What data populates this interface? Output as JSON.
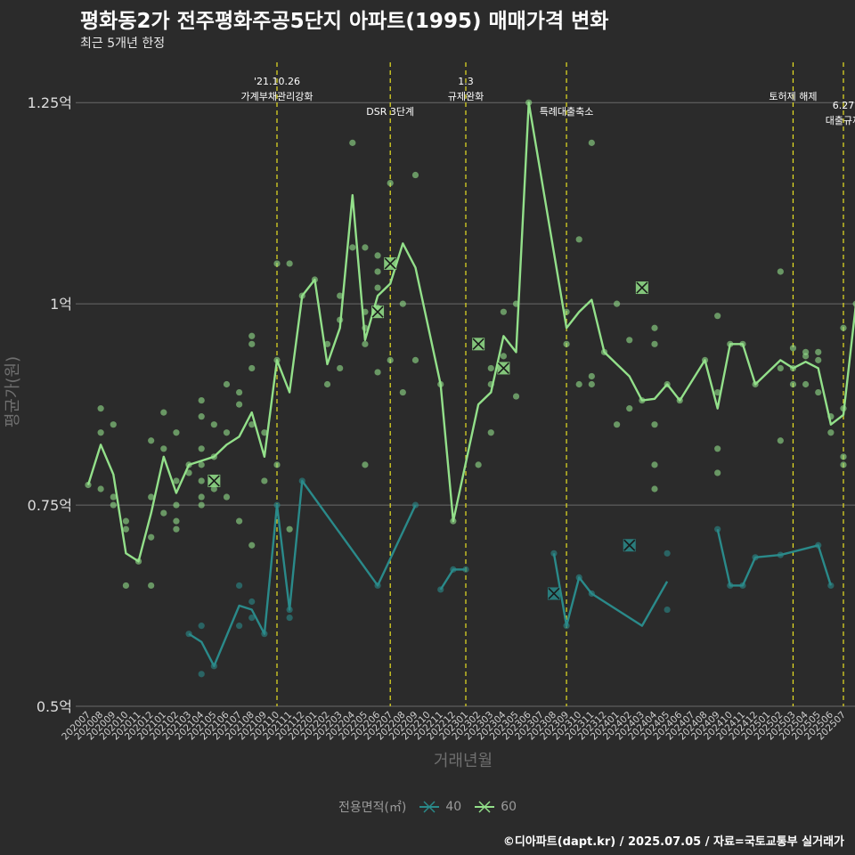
{
  "title": "평화동2가 전주평화주공5단지 아파트(1995) 매매가격 변화",
  "subtitle": "최근 5개년 한정",
  "credit": "©디아파트(dapt.kr) / 2025.07.05 / 자료=국토교통부 실거래가",
  "colors": {
    "background": "#2b2b2b",
    "s40": "#2a8a8a",
    "s60": "#93e08a",
    "event": "#e8e022",
    "grid": "#6a6a6a"
  },
  "chart_data": {
    "type": "line",
    "xlabel": "거래년월",
    "ylabel": "평균가(원)",
    "ylim": [
      0.5,
      1.3
    ],
    "yticks": [
      0.5,
      0.75,
      1.0,
      1.25
    ],
    "ytick_labels": [
      "0.5억",
      "0.75억",
      "1억",
      "1.25억"
    ],
    "categories": [
      "202007",
      "202008",
      "202009",
      "202010",
      "202011",
      "202012",
      "202101",
      "202102",
      "202103",
      "202104",
      "202105",
      "202106",
      "202107",
      "202108",
      "202109",
      "202110",
      "202111",
      "202112",
      "202201",
      "202202",
      "202203",
      "202204",
      "202205",
      "202206",
      "202207",
      "202208",
      "202209",
      "202210",
      "202211",
      "202212",
      "202301",
      "202302",
      "202303",
      "202304",
      "202305",
      "202306",
      "202307",
      "202308",
      "202309",
      "202310",
      "202311",
      "202312",
      "202401",
      "202402",
      "202403",
      "202404",
      "202405",
      "202406",
      "202407",
      "202408",
      "202409",
      "202410",
      "202411",
      "202412",
      "202501",
      "202502",
      "202503",
      "202504",
      "202505",
      "202506",
      "202507"
    ],
    "legend_title": "전용면적(㎡)",
    "series": [
      {
        "name": "40",
        "color": "#2a8a8a",
        "line": [
          [
            [
              8,
              0.59
            ],
            [
              9,
              0.58
            ],
            [
              10,
              0.55
            ],
            [
              12,
              0.625
            ],
            [
              13,
              0.62
            ],
            [
              14,
              0.59
            ],
            [
              15,
              0.75
            ],
            [
              16,
              0.62
            ],
            [
              17,
              0.78
            ],
            [
              23,
              0.65
            ],
            [
              26,
              0.75
            ]
          ],
          [
            [
              28,
              0.645
            ],
            [
              29,
              0.67
            ],
            [
              30,
              0.67
            ]
          ],
          [
            [
              37,
              0.69
            ],
            [
              38,
              0.6
            ],
            [
              39,
              0.66
            ],
            [
              40,
              0.64
            ],
            [
              44,
              0.6
            ],
            [
              46,
              0.655
            ]
          ],
          [
            [
              50,
              0.72
            ],
            [
              51,
              0.65
            ],
            [
              52,
              0.65
            ],
            [
              53,
              0.685
            ],
            [
              55,
              0.688
            ],
            [
              58,
              0.7
            ],
            [
              59,
              0.65
            ]
          ]
        ],
        "points": [
          [
            8,
            0.59
          ],
          [
            9,
            0.6
          ],
          [
            9,
            0.54
          ],
          [
            10,
            0.55
          ],
          [
            12,
            0.6
          ],
          [
            12,
            0.65
          ],
          [
            13,
            0.63
          ],
          [
            13,
            0.61
          ],
          [
            14,
            0.59
          ],
          [
            15,
            0.75
          ],
          [
            16,
            0.61
          ],
          [
            16,
            0.62
          ],
          [
            17,
            0.78
          ],
          [
            23,
            0.65
          ],
          [
            26,
            0.75
          ],
          [
            28,
            0.645
          ],
          [
            29,
            0.67
          ],
          [
            30,
            0.67
          ],
          [
            37,
            0.69
          ],
          [
            38,
            0.6
          ],
          [
            39,
            0.66
          ],
          [
            40,
            0.64
          ],
          [
            46,
            0.69
          ],
          [
            46,
            0.62
          ],
          [
            50,
            0.72
          ],
          [
            51,
            0.65
          ],
          [
            52,
            0.65
          ],
          [
            53,
            0.685
          ],
          [
            55,
            0.688
          ],
          [
            58,
            0.7
          ],
          [
            59,
            0.65
          ]
        ],
        "crosses": [
          [
            37,
            0.64
          ],
          [
            43,
            0.7
          ]
        ]
      },
      {
        "name": "60",
        "color": "#93e08a",
        "line": [
          [
            [
              0,
              0.775
            ],
            [
              1,
              0.825
            ],
            [
              2,
              0.788
            ],
            [
              3,
              0.69
            ],
            [
              4,
              0.68
            ],
            [
              5,
              0.74
            ],
            [
              6,
              0.81
            ],
            [
              7,
              0.765
            ],
            [
              8,
              0.8
            ],
            [
              9,
              0.805
            ],
            [
              10,
              0.81
            ],
            [
              11,
              0.825
            ],
            [
              12,
              0.835
            ],
            [
              13,
              0.865
            ],
            [
              14,
              0.81
            ],
            [
              15,
              0.93
            ],
            [
              16,
              0.89
            ],
            [
              17,
              1.01
            ],
            [
              18,
              1.03
            ],
            [
              19,
              0.925
            ],
            [
              20,
              0.97
            ],
            [
              21,
              1.135
            ],
            [
              22,
              0.955
            ],
            [
              23,
              1.01
            ],
            [
              24,
              1.025
            ],
            [
              25,
              1.075
            ],
            [
              26,
              1.045
            ],
            [
              28,
              0.9
            ],
            [
              29,
              0.73
            ],
            [
              31,
              0.875
            ],
            [
              32,
              0.89
            ],
            [
              33,
              0.96
            ],
            [
              34,
              0.94
            ],
            [
              35,
              1.25
            ],
            [
              38,
              0.97
            ],
            [
              39,
              0.99
            ],
            [
              40,
              1.005
            ],
            [
              41,
              0.94
            ],
            [
              43,
              0.91
            ],
            [
              44,
              0.88
            ],
            [
              45,
              0.882
            ],
            [
              46,
              0.9
            ],
            [
              47,
              0.88
            ],
            [
              49,
              0.93
            ],
            [
              50,
              0.87
            ],
            [
              51,
              0.95
            ],
            [
              52,
              0.95
            ],
            [
              53,
              0.9
            ],
            [
              55,
              0.93
            ],
            [
              56,
              0.92
            ],
            [
              57,
              0.928
            ],
            [
              58,
              0.92
            ],
            [
              59,
              0.85
            ],
            [
              60,
              0.862
            ],
            [
              61,
              1.0
            ]
          ]
        ],
        "points": [
          [
            0,
            0.775
          ],
          [
            1,
            0.87
          ],
          [
            1,
            0.84
          ],
          [
            1,
            0.77
          ],
          [
            2,
            0.85
          ],
          [
            2,
            0.76
          ],
          [
            2,
            0.75
          ],
          [
            3,
            0.73
          ],
          [
            3,
            0.72
          ],
          [
            3,
            0.65
          ],
          [
            4,
            0.68
          ],
          [
            5,
            0.83
          ],
          [
            5,
            0.76
          ],
          [
            5,
            0.71
          ],
          [
            5,
            0.65
          ],
          [
            6,
            0.865
          ],
          [
            6,
            0.82
          ],
          [
            6,
            0.74
          ],
          [
            7,
            0.84
          ],
          [
            7,
            0.78
          ],
          [
            7,
            0.75
          ],
          [
            7,
            0.73
          ],
          [
            7,
            0.72
          ],
          [
            8,
            0.8
          ],
          [
            8,
            0.79
          ],
          [
            9,
            0.88
          ],
          [
            9,
            0.86
          ],
          [
            9,
            0.82
          ],
          [
            9,
            0.8
          ],
          [
            9,
            0.78
          ],
          [
            9,
            0.76
          ],
          [
            9,
            0.75
          ],
          [
            10,
            0.85
          ],
          [
            10,
            0.81
          ],
          [
            10,
            0.77
          ],
          [
            11,
            0.9
          ],
          [
            11,
            0.84
          ],
          [
            11,
            0.76
          ],
          [
            12,
            0.89
          ],
          [
            12,
            0.875
          ],
          [
            12,
            0.73
          ],
          [
            13,
            0.96
          ],
          [
            13,
            0.95
          ],
          [
            13,
            0.92
          ],
          [
            13,
            0.85
          ],
          [
            13,
            0.7
          ],
          [
            14,
            0.84
          ],
          [
            14,
            0.78
          ],
          [
            15,
            1.05
          ],
          [
            15,
            0.93
          ],
          [
            15,
            0.8
          ],
          [
            16,
            1.05
          ],
          [
            16,
            0.72
          ],
          [
            17,
            1.01
          ],
          [
            18,
            1.03
          ],
          [
            19,
            0.95
          ],
          [
            19,
            0.9
          ],
          [
            20,
            1.01
          ],
          [
            20,
            0.98
          ],
          [
            20,
            0.92
          ],
          [
            21,
            1.2
          ],
          [
            21,
            1.07
          ],
          [
            22,
            1.07
          ],
          [
            22,
            0.99
          ],
          [
            22,
            0.97
          ],
          [
            22,
            0.95
          ],
          [
            22,
            0.8
          ],
          [
            23,
            1.06
          ],
          [
            23,
            1.04
          ],
          [
            23,
            1.02
          ],
          [
            23,
            0.995
          ],
          [
            23,
            0.915
          ],
          [
            24,
            1.15
          ],
          [
            24,
            0.93
          ],
          [
            25,
            1.0
          ],
          [
            25,
            0.89
          ],
          [
            26,
            1.16
          ],
          [
            26,
            0.93
          ],
          [
            28,
            0.9
          ],
          [
            29,
            0.73
          ],
          [
            31,
            0.8
          ],
          [
            32,
            0.92
          ],
          [
            32,
            0.9
          ],
          [
            32,
            0.84
          ],
          [
            33,
            0.99
          ],
          [
            33,
            0.935
          ],
          [
            34,
            1.0
          ],
          [
            34,
            0.885
          ],
          [
            35,
            1.25
          ],
          [
            38,
            0.99
          ],
          [
            38,
            0.95
          ],
          [
            39,
            1.08
          ],
          [
            39,
            0.9
          ],
          [
            40,
            1.2
          ],
          [
            40,
            0.91
          ],
          [
            40,
            0.9
          ],
          [
            41,
            0.94
          ],
          [
            42,
            1.0
          ],
          [
            42,
            0.85
          ],
          [
            43,
            0.955
          ],
          [
            43,
            0.87
          ],
          [
            44,
            0.88
          ],
          [
            45,
            0.97
          ],
          [
            45,
            0.95
          ],
          [
            45,
            0.85
          ],
          [
            45,
            0.8
          ],
          [
            45,
            0.77
          ],
          [
            46,
            0.9
          ],
          [
            47,
            0.88
          ],
          [
            49,
            0.93
          ],
          [
            50,
            0.985
          ],
          [
            50,
            0.89
          ],
          [
            50,
            0.82
          ],
          [
            50,
            0.79
          ],
          [
            51,
            0.95
          ],
          [
            52,
            0.95
          ],
          [
            53,
            0.9
          ],
          [
            55,
            1.04
          ],
          [
            55,
            0.92
          ],
          [
            55,
            0.83
          ],
          [
            56,
            0.945
          ],
          [
            56,
            0.92
          ],
          [
            56,
            0.9
          ],
          [
            57,
            0.94
          ],
          [
            57,
            0.935
          ],
          [
            57,
            0.9
          ],
          [
            58,
            0.94
          ],
          [
            58,
            0.93
          ],
          [
            58,
            0.89
          ],
          [
            59,
            0.86
          ],
          [
            59,
            0.84
          ],
          [
            60,
            0.97
          ],
          [
            60,
            0.87
          ],
          [
            60,
            0.81
          ],
          [
            60,
            0.8
          ],
          [
            61,
            1.0
          ]
        ],
        "crosses": [
          [
            10,
            0.78
          ],
          [
            23,
            0.99
          ],
          [
            24,
            1.05
          ],
          [
            31,
            0.95
          ],
          [
            33,
            0.92
          ],
          [
            44,
            1.02
          ]
        ]
      }
    ],
    "events": [
      {
        "x": 15,
        "lines": [
          "'21.10.26",
          "가계부채관리강화"
        ],
        "row": 0
      },
      {
        "x": 24,
        "lines": [
          "DSR 3단계"
        ],
        "row": 2
      },
      {
        "x": 30,
        "lines": [
          "1.3",
          "규제완화"
        ],
        "row": 0
      },
      {
        "x": 38,
        "lines": [
          "특례대출축소"
        ],
        "row": 2
      },
      {
        "x": 56,
        "lines": [
          "토허제 해제"
        ],
        "row": 1
      },
      {
        "x": 60,
        "lines": [
          "6.27",
          "대출규제"
        ],
        "row": 1.6
      }
    ]
  }
}
